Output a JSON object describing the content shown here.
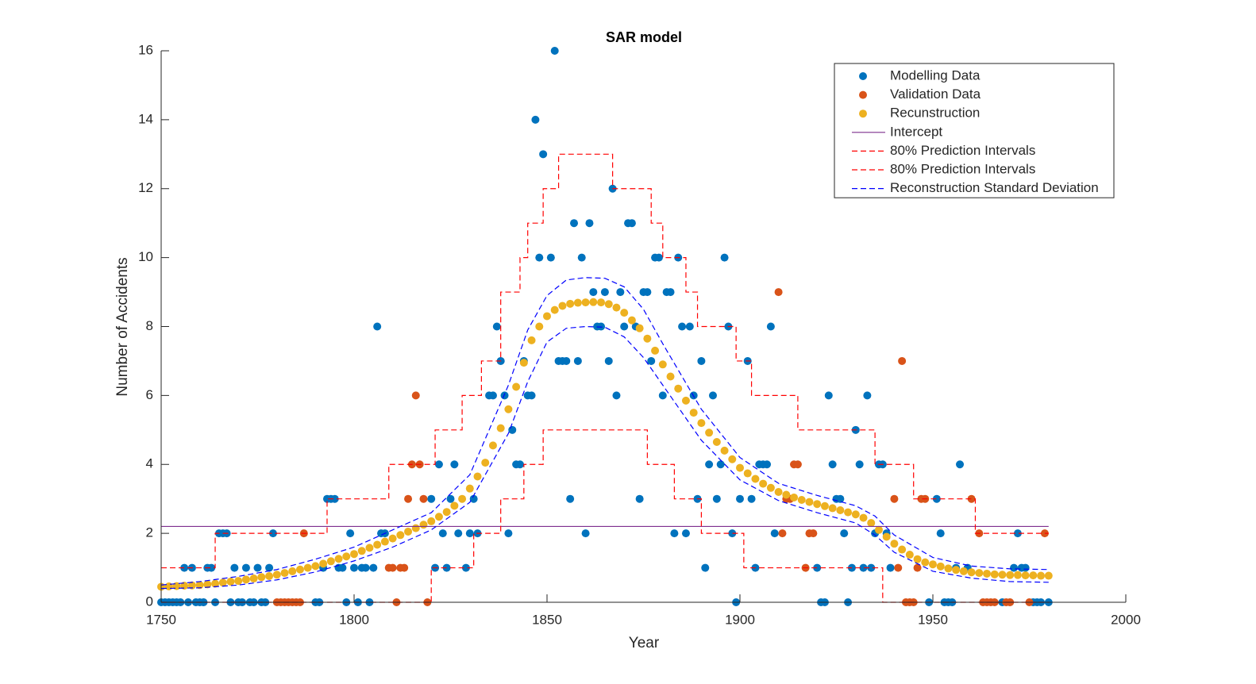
{
  "chart_data": {
    "type": "scatter",
    "title": "SAR model",
    "xlabel": "Year",
    "ylabel": "Number of Accidents",
    "xlim": [
      1750,
      2000
    ],
    "ylim": [
      0,
      16
    ],
    "xticks": [
      1750,
      1800,
      1850,
      1900,
      1950,
      2000
    ],
    "yticks": [
      0,
      2,
      4,
      6,
      8,
      10,
      12,
      14,
      16
    ],
    "legend": "upper right",
    "series": [
      {
        "name": "Modelling Data",
        "mode": "markers",
        "color": "#0072BD",
        "x": [
          1750,
          1751,
          1752,
          1753,
          1754,
          1755,
          1756,
          1757,
          1758,
          1759,
          1760,
          1761,
          1762,
          1763,
          1764,
          1765,
          1766,
          1767,
          1768,
          1769,
          1770,
          1771,
          1772,
          1773,
          1774,
          1775,
          1776,
          1777,
          1778,
          1779,
          1790,
          1791,
          1792,
          1793,
          1794,
          1795,
          1796,
          1797,
          1798,
          1799,
          1800,
          1801,
          1802,
          1803,
          1804,
          1805,
          1806,
          1807,
          1808,
          1820,
          1821,
          1822,
          1823,
          1824,
          1825,
          1826,
          1827,
          1829,
          1830,
          1831,
          1832,
          1835,
          1836,
          1837,
          1838,
          1839,
          1840,
          1841,
          1842,
          1843,
          1844,
          1845,
          1846,
          1847,
          1848,
          1849,
          1851,
          1852,
          1853,
          1854,
          1855,
          1856,
          1857,
          1858,
          1859,
          1860,
          1861,
          1862,
          1863,
          1864,
          1865,
          1866,
          1867,
          1868,
          1869,
          1870,
          1871,
          1872,
          1873,
          1874,
          1875,
          1876,
          1877,
          1878,
          1879,
          1880,
          1881,
          1882,
          1883,
          1884,
          1885,
          1886,
          1887,
          1888,
          1889,
          1890,
          1891,
          1892,
          1893,
          1894,
          1895,
          1896,
          1897,
          1898,
          1899,
          1900,
          1902,
          1903,
          1904,
          1905,
          1906,
          1907,
          1908,
          1909,
          1920,
          1921,
          1922,
          1923,
          1924,
          1925,
          1926,
          1927,
          1928,
          1929,
          1930,
          1931,
          1932,
          1933,
          1934,
          1935,
          1936,
          1937,
          1938,
          1939,
          1949,
          1951,
          1952,
          1953,
          1954,
          1955,
          1956,
          1957,
          1959,
          1968,
          1971,
          1972,
          1973,
          1974,
          1976,
          1977,
          1978,
          1980
        ],
        "values": [
          0,
          0,
          0,
          0,
          0,
          0,
          1,
          0,
          1,
          0,
          0,
          0,
          1,
          1,
          0,
          2,
          2,
          2,
          0,
          1,
          0,
          0,
          1,
          0,
          0,
          1,
          0,
          0,
          1,
          2,
          0,
          0,
          1,
          3,
          3,
          3,
          1,
          1,
          0,
          2,
          1,
          0,
          1,
          1,
          0,
          1,
          8,
          2,
          2,
          3,
          1,
          4,
          2,
          1,
          3,
          4,
          2,
          1,
          2,
          3,
          2,
          6,
          6,
          8,
          7,
          6,
          2,
          5,
          4,
          4,
          7,
          6,
          6,
          14,
          10,
          13,
          10,
          16,
          7,
          7,
          7,
          3,
          11,
          7,
          10,
          2,
          11,
          9,
          8,
          8,
          9,
          7,
          12,
          6,
          9,
          8,
          11,
          11,
          8,
          3,
          9,
          9,
          7,
          10,
          10,
          6,
          9,
          9,
          2,
          10,
          8,
          2,
          8,
          6,
          3,
          7,
          1,
          4,
          6,
          3,
          4,
          10,
          8,
          2,
          0,
          3,
          7,
          3,
          1,
          4,
          4,
          4,
          8,
          2,
          1,
          0,
          0,
          6,
          4,
          3,
          3,
          2,
          0,
          1,
          5,
          4,
          1,
          6,
          1,
          2,
          4,
          4,
          2,
          1,
          0,
          3,
          2,
          0,
          0,
          0,
          1,
          4,
          1,
          0,
          1,
          2,
          1,
          1,
          0,
          0,
          0,
          0
        ]
      },
      {
        "name": "Validation Data",
        "mode": "markers",
        "color": "#D95319",
        "x": [
          1780,
          1781,
          1782,
          1783,
          1784,
          1785,
          1786,
          1787,
          1809,
          1810,
          1811,
          1812,
          1813,
          1814,
          1815,
          1816,
          1817,
          1818,
          1819,
          1910,
          1911,
          1912,
          1913,
          1914,
          1915,
          1917,
          1918,
          1919,
          1940,
          1941,
          1942,
          1943,
          1944,
          1945,
          1946,
          1947,
          1948,
          1960,
          1962,
          1963,
          1964,
          1965,
          1966,
          1969,
          1970,
          1975,
          1979
        ],
        "values": [
          0,
          0,
          0,
          0,
          0,
          0,
          0,
          2,
          1,
          1,
          0,
          1,
          1,
          3,
          4,
          6,
          4,
          3,
          0,
          9,
          2,
          3,
          3,
          4,
          4,
          1,
          2,
          2,
          3,
          1,
          7,
          0,
          0,
          0,
          1,
          3,
          3,
          3,
          2,
          0,
          0,
          0,
          0,
          0,
          0,
          0,
          2
        ]
      },
      {
        "name": "Recunstruction",
        "mode": "markers",
        "color": "#EDB120",
        "x": [
          1750,
          1752,
          1754,
          1756,
          1758,
          1760,
          1762,
          1764,
          1766,
          1768,
          1770,
          1772,
          1774,
          1776,
          1778,
          1780,
          1782,
          1784,
          1786,
          1788,
          1790,
          1792,
          1794,
          1796,
          1798,
          1800,
          1802,
          1804,
          1806,
          1808,
          1810,
          1812,
          1814,
          1816,
          1818,
          1820,
          1822,
          1824,
          1826,
          1828,
          1830,
          1832,
          1834,
          1836,
          1838,
          1840,
          1842,
          1844,
          1846,
          1848,
          1850,
          1852,
          1854,
          1856,
          1858,
          1860,
          1862,
          1864,
          1866,
          1868,
          1870,
          1872,
          1874,
          1876,
          1878,
          1880,
          1882,
          1884,
          1886,
          1888,
          1890,
          1892,
          1894,
          1896,
          1898,
          1900,
          1902,
          1904,
          1906,
          1908,
          1910,
          1912,
          1914,
          1916,
          1918,
          1920,
          1922,
          1924,
          1926,
          1928,
          1930,
          1932,
          1934,
          1936,
          1938,
          1940,
          1942,
          1944,
          1946,
          1948,
          1950,
          1952,
          1954,
          1956,
          1958,
          1960,
          1962,
          1964,
          1966,
          1968,
          1970,
          1972,
          1974,
          1976,
          1978,
          1980
        ],
        "values": [
          0.45,
          0.46,
          0.47,
          0.48,
          0.49,
          0.5,
          0.52,
          0.54,
          0.57,
          0.6,
          0.62,
          0.66,
          0.69,
          0.73,
          0.76,
          0.8,
          0.85,
          0.9,
          0.95,
          1.0,
          1.05,
          1.12,
          1.19,
          1.26,
          1.33,
          1.4,
          1.49,
          1.58,
          1.67,
          1.76,
          1.85,
          1.95,
          2.05,
          2.15,
          2.25,
          2.35,
          2.48,
          2.62,
          2.8,
          3.0,
          3.3,
          3.65,
          4.05,
          4.55,
          5.05,
          5.6,
          6.25,
          6.95,
          7.6,
          8.0,
          8.3,
          8.48,
          8.6,
          8.66,
          8.69,
          8.7,
          8.71,
          8.7,
          8.65,
          8.55,
          8.4,
          8.18,
          7.95,
          7.65,
          7.3,
          6.9,
          6.55,
          6.2,
          5.85,
          5.5,
          5.2,
          4.92,
          4.65,
          4.4,
          4.15,
          3.9,
          3.74,
          3.58,
          3.44,
          3.32,
          3.2,
          3.12,
          3.04,
          2.97,
          2.91,
          2.85,
          2.79,
          2.73,
          2.67,
          2.61,
          2.55,
          2.45,
          2.3,
          2.1,
          1.9,
          1.7,
          1.53,
          1.38,
          1.25,
          1.16,
          1.1,
          1.04,
          0.98,
          0.94,
          0.9,
          0.87,
          0.85,
          0.83,
          0.81,
          0.8,
          0.79,
          0.79,
          0.78,
          0.78,
          0.77,
          0.77
        ]
      },
      {
        "name": "Intercept",
        "mode": "line",
        "color": "#7E2F8E",
        "x": [
          1750,
          1980
        ],
        "values": [
          2.2,
          2.2
        ]
      },
      {
        "name": "80% Prediction Intervals",
        "mode": "dashed",
        "color": "#FF0000",
        "x": [
          1750,
          1764,
          1764,
          1793,
          1793,
          1809,
          1809,
          1821,
          1821,
          1828,
          1828,
          1833,
          1833,
          1838,
          1838,
          1843,
          1843,
          1845,
          1845,
          1849,
          1849,
          1853,
          1853,
          1867,
          1867,
          1877,
          1877,
          1880,
          1880,
          1886,
          1886,
          1889,
          1889,
          1899,
          1899,
          1903,
          1903,
          1915,
          1915,
          1935,
          1935,
          1945,
          1945,
          1961,
          1961,
          1980
        ],
        "values": [
          1,
          1,
          2,
          2,
          3,
          3,
          4,
          4,
          5,
          5,
          6,
          6,
          7,
          7,
          9,
          9,
          10,
          10,
          11,
          11,
          12,
          12,
          13,
          13,
          12,
          12,
          11,
          11,
          10,
          10,
          9,
          9,
          8,
          8,
          7,
          7,
          6,
          6,
          5,
          5,
          4,
          4,
          3,
          3,
          2,
          2
        ]
      },
      {
        "name": "80% Prediction Intervals",
        "mode": "dashed",
        "color": "#FF0000",
        "x": [
          1750,
          1820,
          1820,
          1831,
          1831,
          1838,
          1838,
          1844,
          1844,
          1849,
          1849,
          1876,
          1876,
          1883,
          1883,
          1890,
          1890,
          1901,
          1901,
          1937,
          1937,
          1980
        ],
        "values": [
          0,
          0,
          1,
          1,
          2,
          2,
          3,
          3,
          4,
          4,
          5,
          5,
          4,
          4,
          3,
          3,
          2,
          2,
          1,
          1,
          0,
          0
        ]
      },
      {
        "name": "Reconstruction Standard Deviation",
        "mode": "dashed",
        "color": "#0000FF",
        "x": [
          1750,
          1760,
          1770,
          1780,
          1790,
          1800,
          1810,
          1820,
          1830,
          1840,
          1845,
          1850,
          1855,
          1860,
          1865,
          1870,
          1875,
          1880,
          1890,
          1900,
          1910,
          1920,
          1930,
          1935,
          1940,
          1950,
          1960,
          1970,
          1980
        ],
        "values": [
          0.5,
          0.6,
          0.75,
          0.95,
          1.25,
          1.6,
          2.1,
          2.6,
          3.7,
          6.3,
          7.9,
          8.9,
          9.35,
          9.42,
          9.4,
          9.15,
          8.5,
          7.5,
          5.6,
          4.2,
          3.45,
          3.1,
          2.8,
          2.5,
          1.95,
          1.3,
          1.05,
          0.97,
          0.95
        ]
      },
      {
        "mode": "dashed",
        "color": "#0000FF",
        "x": [
          1750,
          1760,
          1770,
          1780,
          1790,
          1800,
          1810,
          1820,
          1830,
          1840,
          1845,
          1850,
          1855,
          1860,
          1865,
          1870,
          1875,
          1880,
          1890,
          1900,
          1910,
          1920,
          1930,
          1935,
          1940,
          1950,
          1960,
          1970,
          1980
        ],
        "values": [
          0.4,
          0.42,
          0.5,
          0.65,
          0.88,
          1.2,
          1.6,
          2.1,
          2.9,
          4.9,
          6.4,
          7.55,
          7.95,
          8.0,
          7.98,
          7.7,
          7.1,
          6.3,
          4.7,
          3.55,
          2.95,
          2.6,
          2.3,
          1.95,
          1.45,
          0.9,
          0.7,
          0.6,
          0.58
        ]
      }
    ]
  }
}
